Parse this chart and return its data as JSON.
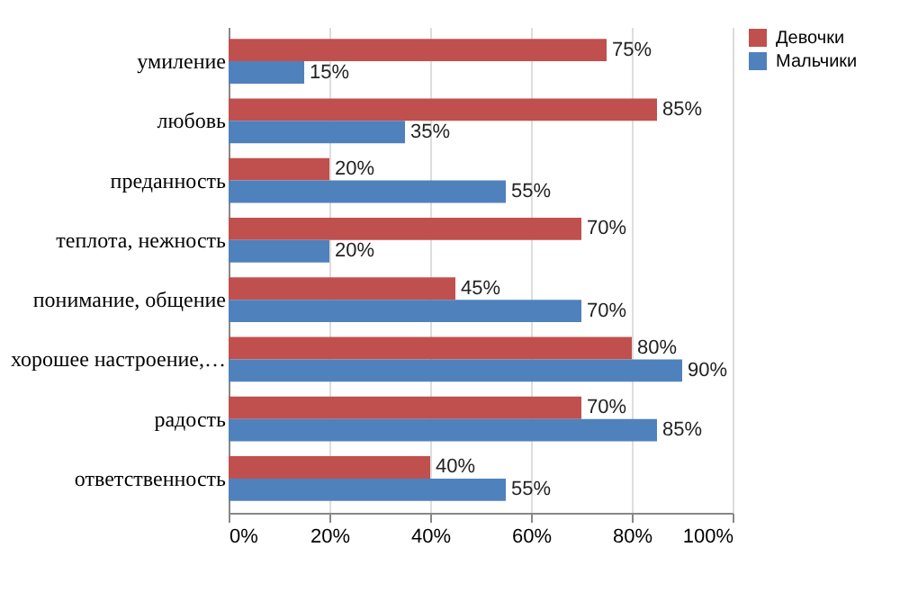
{
  "chart_data": {
    "type": "bar",
    "orientation": "horizontal",
    "categories": [
      "умиление",
      "любовь",
      "преданность",
      "теплота, нежность",
      "понимание, общение",
      "хорошее настроение,…",
      "радость",
      "ответственность"
    ],
    "series": [
      {
        "name": "Девочки",
        "color": "#c0504d",
        "values": [
          75,
          85,
          20,
          70,
          45,
          80,
          70,
          40
        ],
        "value_labels": [
          "75%",
          "85%",
          "20%",
          "70%",
          "45%",
          "80%",
          "70%",
          "40%"
        ]
      },
      {
        "name": "Мальчики",
        "color": "#4f81bd",
        "values": [
          15,
          35,
          55,
          20,
          70,
          90,
          85,
          55
        ],
        "value_labels": [
          "15%",
          "35%",
          "55%",
          "20%",
          "70%",
          "90%",
          "85%",
          "55%"
        ]
      }
    ],
    "xlim": [
      0,
      100
    ],
    "xticks": [
      {
        "value": 0,
        "label": "0%"
      },
      {
        "value": 20,
        "label": "20%"
      },
      {
        "value": 40,
        "label": "40%"
      },
      {
        "value": 60,
        "label": "60%"
      },
      {
        "value": 80,
        "label": "80%"
      },
      {
        "value": 100,
        "label": "100%"
      }
    ],
    "grid": "x",
    "legend": "right"
  }
}
